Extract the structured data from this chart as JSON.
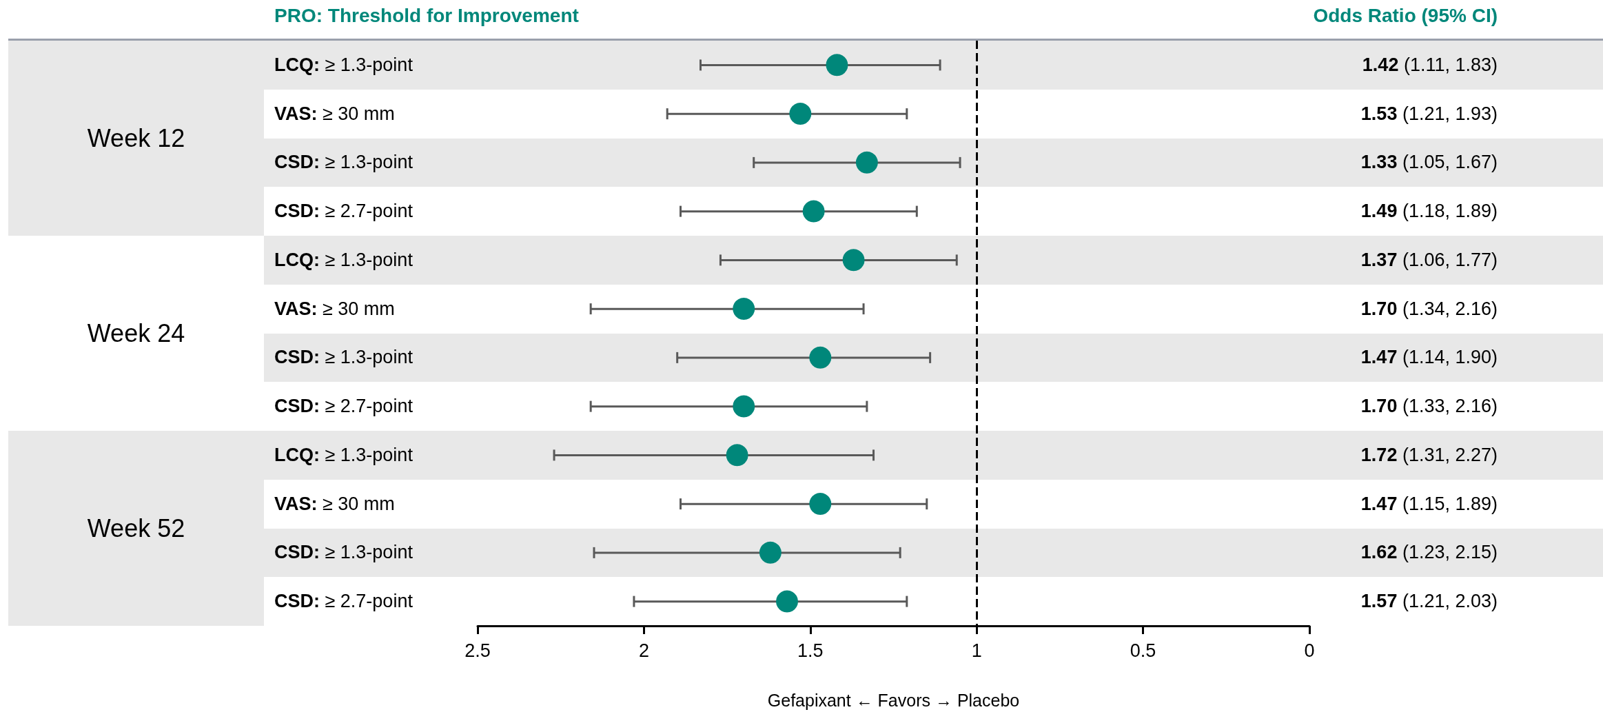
{
  "chart_data": {
    "type": "scatter",
    "ylabel": "PRO: Threshold for Improvement",
    "y2label": "Odds Ratio (95% CI)",
    "xlabel": "Gefapixant ← Favors → Placebo",
    "categories": [
      "LCQ: ≥ 1.3-point",
      "VAS: ≥ 30 mm",
      "CSD: ≥ 1.3-point",
      "CSD: ≥ 2.7-point",
      "LCQ: ≥ 1.3-point",
      "VAS: ≥ 30 mm",
      "CSD: ≥ 1.3-point",
      "CSD: ≥ 2.7-point",
      "LCQ: ≥ 1.3-point",
      "VAS: ≥ 30 mm",
      "CSD: ≥ 1.3-point",
      "CSD: ≥ 2.7-point"
    ],
    "values": [
      1.42,
      1.53,
      1.33,
      1.49,
      1.37,
      1.7,
      1.47,
      1.7,
      1.72,
      1.47,
      1.62,
      1.57
    ],
    "errors": [
      [
        1.11,
        1.83
      ],
      [
        1.21,
        1.93
      ],
      [
        1.05,
        1.67
      ],
      [
        1.18,
        1.89
      ],
      [
        1.06,
        1.77
      ],
      [
        1.34,
        2.16
      ],
      [
        1.14,
        1.9
      ],
      [
        1.33,
        2.16
      ],
      [
        1.31,
        2.27
      ],
      [
        1.15,
        1.89
      ],
      [
        1.23,
        2.15
      ],
      [
        1.21,
        2.03
      ]
    ],
    "value_labels": [
      "1.42 (1.11, 1.83)",
      "1.53 (1.21, 1.93)",
      "1.33 (1.05, 1.67)",
      "1.49 (1.18, 1.89)",
      "1.37 (1.06, 1.77)",
      "1.70 (1.34, 2.16)",
      "1.47 (1.14, 1.90)",
      "1.70 (1.33, 2.16)",
      "1.72 (1.31, 2.27)",
      "1.47 (1.15, 1.89)",
      "1.62 (1.23, 2.15)",
      "1.57 (1.21, 2.03)"
    ],
    "annotations": [
      "Week 12",
      "Week 24",
      "Week 52"
    ],
    "color": "#00877a",
    "marker": "circle",
    "xlim": [
      2.5,
      0
    ],
    "xticks": [
      2.5,
      2,
      1.5,
      1,
      0.5,
      0
    ],
    "ref_lines": [
      {
        "axis": "x",
        "value": 1,
        "line_style": "dashed"
      }
    ],
    "orientation": "horizontal"
  }
}
